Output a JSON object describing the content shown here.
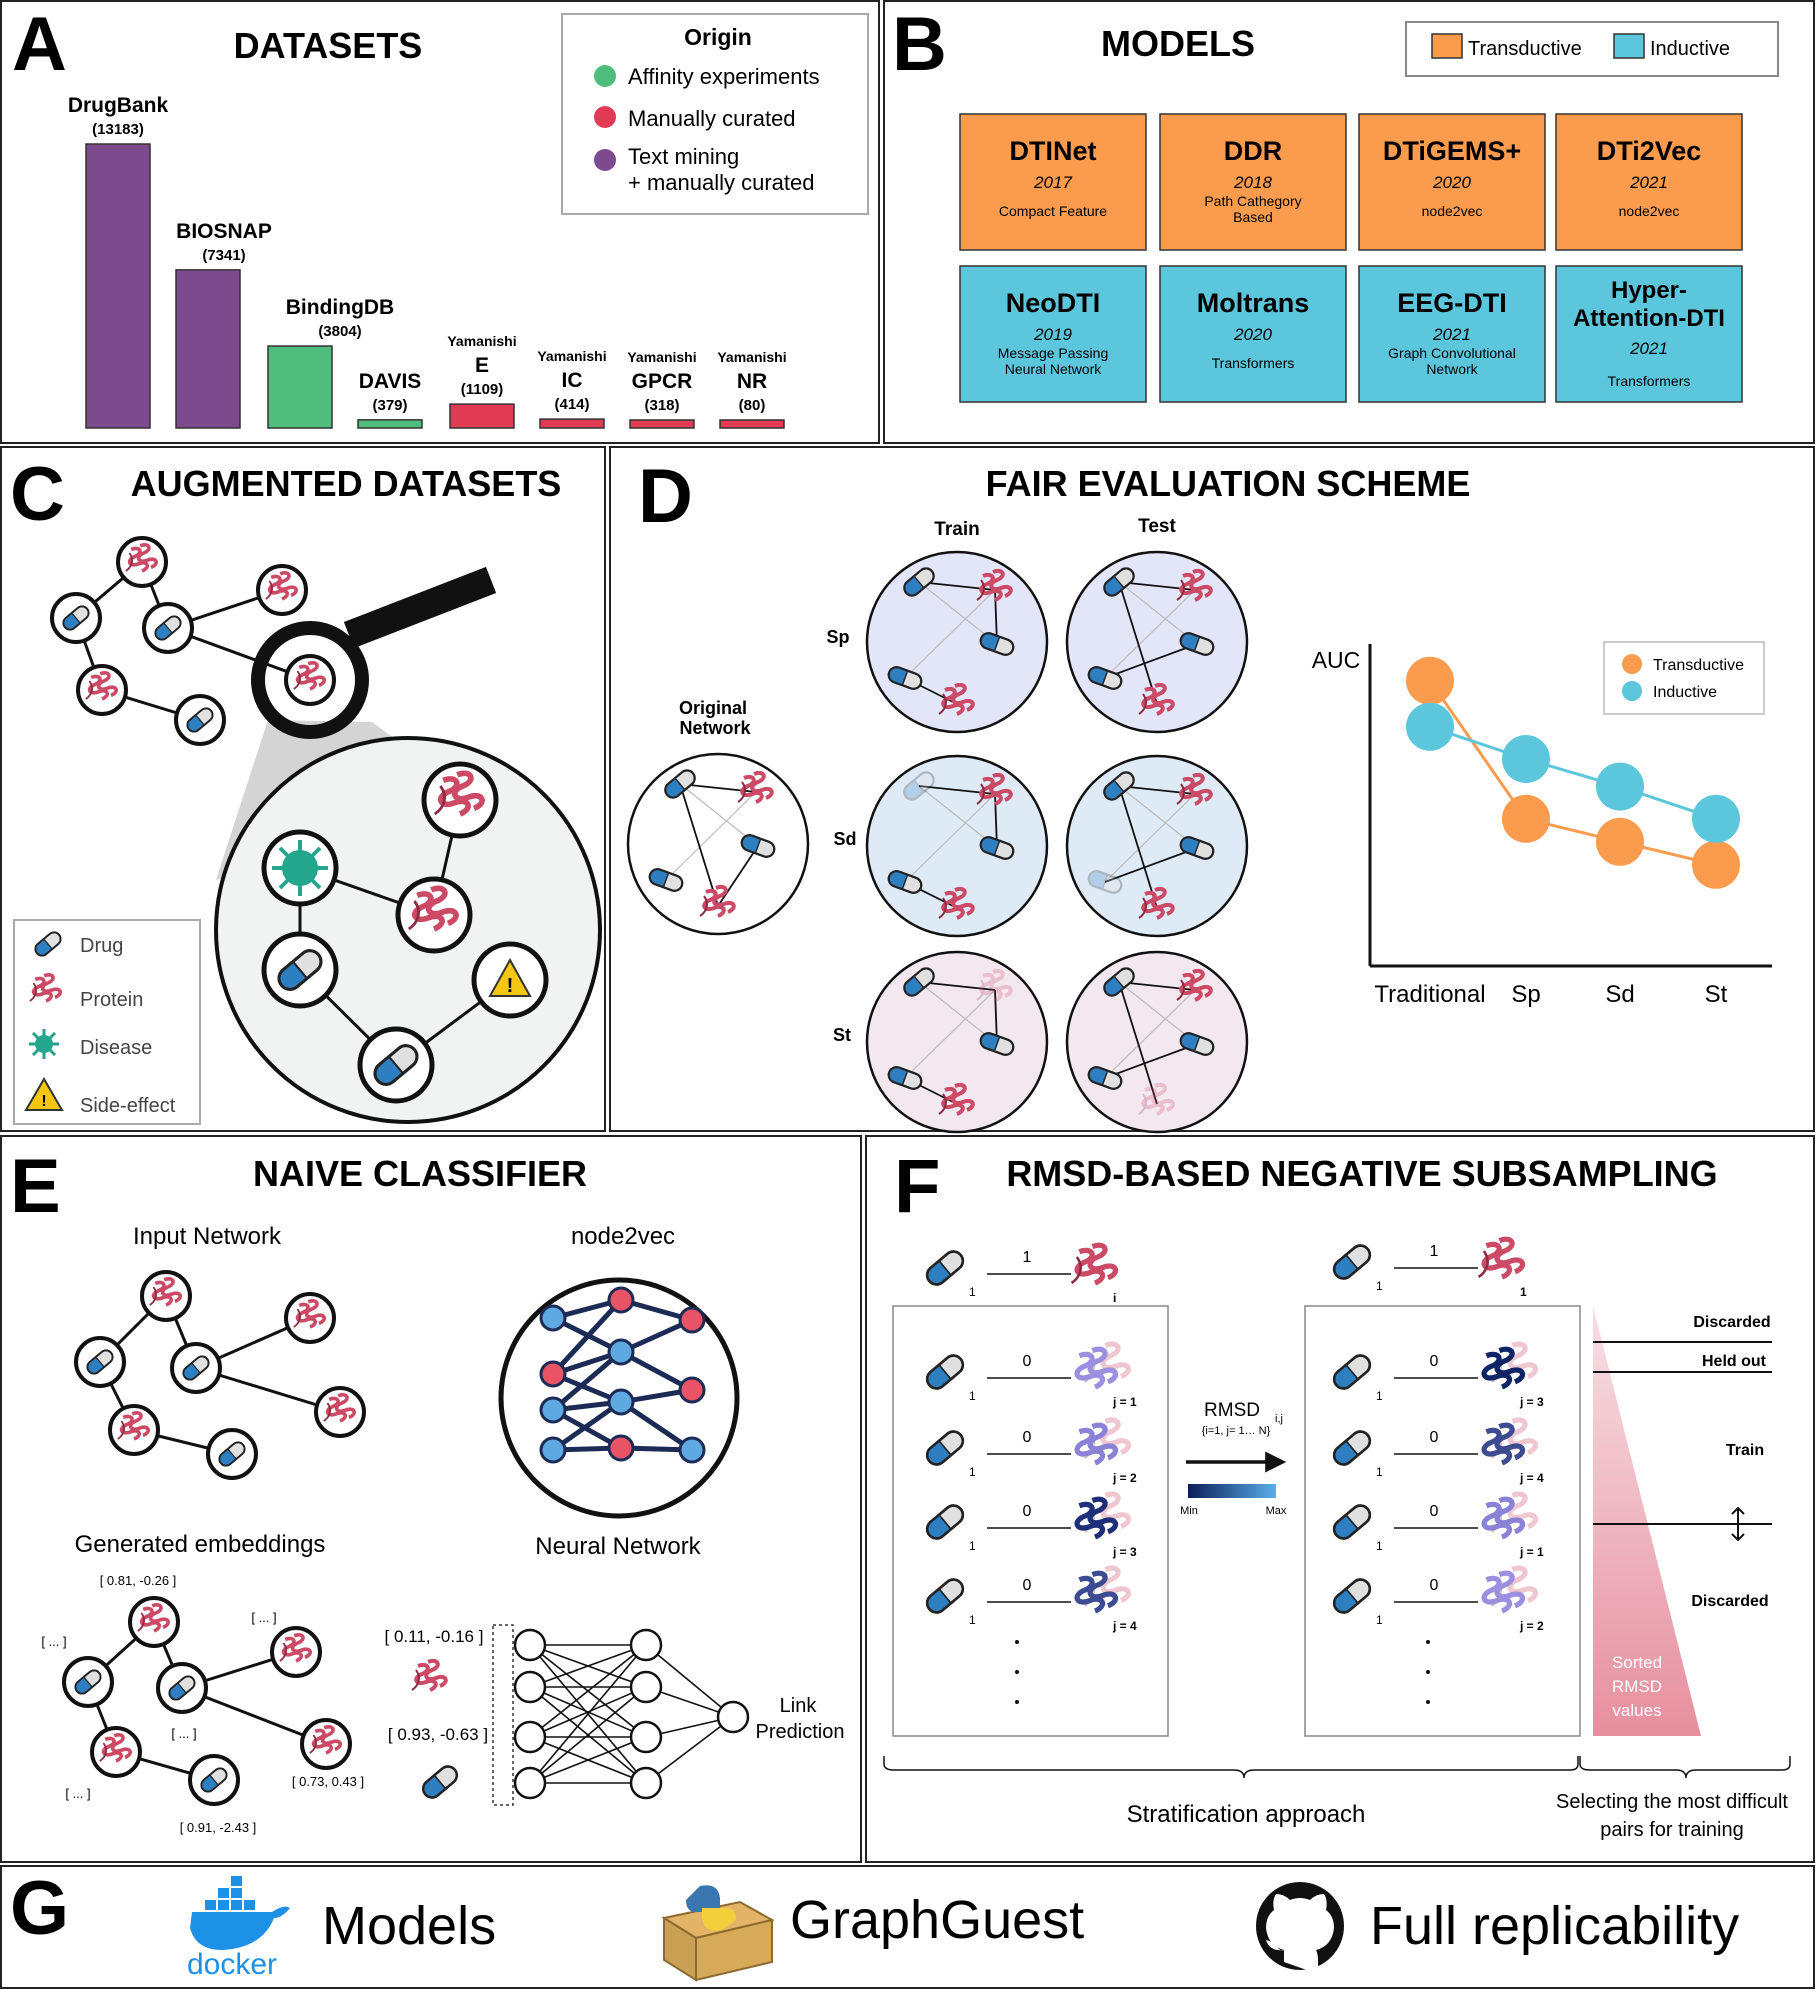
{
  "panels": {
    "a": {
      "letter": "A",
      "title": "DATASETS"
    },
    "b": {
      "letter": "B",
      "title": "MODELS"
    },
    "c": {
      "letter": "C",
      "title": "AUGMENTED DATASETS"
    },
    "d": {
      "letter": "D",
      "title": "FAIR EVALUATION SCHEME"
    },
    "e": {
      "letter": "E",
      "title": "NAIVE CLASSIFIER"
    },
    "f": {
      "letter": "F",
      "title": "RMSD-BASED NEGATIVE SUBSAMPLING"
    },
    "g": {
      "letter": "G"
    }
  },
  "colors": {
    "text_mining": "#7d4a8e",
    "affinity": "#4fbd7b",
    "curated": "#e23b55",
    "transductive": "#fb9b4d",
    "inductive": "#5cc6dc",
    "drug_blue": "#2e7fc1",
    "protein": "#cc4a66",
    "disease": "#23a68b",
    "side_effect": "#f5c612"
  },
  "datasets": {
    "legend_title": "Origin",
    "legend": [
      {
        "label": "Affinity experiments",
        "color_key": "affinity"
      },
      {
        "label": "Manually curated",
        "color_key": "curated"
      },
      {
        "label": "Text mining",
        "label2": "+ manually curated",
        "color_key": "text_mining"
      }
    ],
    "bars": [
      {
        "prefix": "",
        "name": "DrugBank",
        "count": "(13183)",
        "value": 13183,
        "color_key": "text_mining"
      },
      {
        "prefix": "",
        "name": "BIOSNAP",
        "count": "(7341)",
        "value": 7341,
        "color_key": "text_mining"
      },
      {
        "prefix": "",
        "name": "BindingDB",
        "count": "(3804)",
        "value": 3804,
        "color_key": "affinity"
      },
      {
        "prefix": "",
        "name": "DAVIS",
        "count": "(379)",
        "value": 379,
        "color_key": "affinity"
      },
      {
        "prefix": "Yamanishi",
        "name": "E",
        "count": "(1109)",
        "value": 1109,
        "color_key": "curated"
      },
      {
        "prefix": "Yamanishi",
        "name": "IC",
        "count": "(414)",
        "value": 414,
        "color_key": "curated"
      },
      {
        "prefix": "Yamanishi",
        "name": "GPCR",
        "count": "(318)",
        "value": 318,
        "color_key": "curated"
      },
      {
        "prefix": "Yamanishi",
        "name": "NR",
        "count": "(80)",
        "value": 80,
        "color_key": "curated"
      }
    ]
  },
  "models": {
    "legend": {
      "transductive": "Transductive",
      "inductive": "Inductive"
    },
    "transductive": [
      {
        "name": "DTINet",
        "year": "2017",
        "desc1": "Compact Feature",
        "desc2": ""
      },
      {
        "name": "DDR",
        "year": "2018",
        "desc1": "Path Cathegory",
        "desc2": "Based"
      },
      {
        "name": "DTiGEMS+",
        "year": "2020",
        "desc1": "node2vec",
        "desc2": ""
      },
      {
        "name": "DTi2Vec",
        "year": "2021",
        "desc1": "node2vec",
        "desc2": ""
      }
    ],
    "inductive": [
      {
        "name": "NeoDTI",
        "name2": "",
        "year": "2019",
        "desc1": "Message Passing",
        "desc2": "Neural Network"
      },
      {
        "name": "Moltrans",
        "name2": "",
        "year": "2020",
        "desc1": "Transformers",
        "desc2": ""
      },
      {
        "name": "EEG-DTI",
        "name2": "",
        "year": "2021",
        "desc1": "Graph Convolutional",
        "desc2": "Network"
      },
      {
        "name": "Hyper-",
        "name2": "Attention-DTI",
        "year": "2021",
        "desc1": "Transformers",
        "desc2": ""
      }
    ]
  },
  "augmented": {
    "legend": [
      {
        "label": "Drug",
        "icon": "drug-icon"
      },
      {
        "label": "Protein",
        "icon": "protein-icon"
      },
      {
        "label": "Disease",
        "icon": "disease-icon"
      },
      {
        "label": "Side-effect",
        "icon": "side-effect-icon"
      }
    ]
  },
  "fair": {
    "col_train": "Train",
    "col_test": "Test",
    "row_labels": [
      "Sp",
      "Sd",
      "St"
    ],
    "original_label_1": "Original",
    "original_label_2": "Network",
    "chart_data": {
      "type": "line",
      "ylabel": "AUC",
      "categories": [
        "Traditional",
        "Sp",
        "Sd",
        "St"
      ],
      "series": [
        {
          "name": "Transductive",
          "values": [
            0.92,
            0.62,
            0.57,
            0.52
          ],
          "color_key": "transductive"
        },
        {
          "name": "Inductive",
          "values": [
            0.82,
            0.75,
            0.69,
            0.62
          ],
          "color_key": "inductive"
        }
      ],
      "ylim": [
        0.3,
        1.0
      ],
      "legend_position": "top-right",
      "grid": false
    }
  },
  "naive": {
    "input_network": "Input Network",
    "node2vec": "node2vec",
    "generated_embeddings": "Generated embeddings",
    "neural_network": "Neural  Network",
    "emb_a": "[ 0.81, -0.26 ]",
    "emb_b": "[ ... ]",
    "emb_c": "[ ... ]",
    "emb_d": "[ ... ]",
    "emb_e": "[ ... ]",
    "emb_f": "[ 0.73, 0.43 ]",
    "emb_g": "[ 0.91, -2.43 ]",
    "vec_protein": "[ 0.11, -0.16 ]",
    "vec_drug": "[ 0.93, -0.63 ]",
    "link_1": "Link",
    "link_2": "Prediction"
  },
  "rmsd": {
    "one": "1",
    "zero": "0",
    "sub_one": "1",
    "i_label": "i",
    "left_j": [
      "j = 1",
      "j = 2",
      "j = 3",
      "j = 4"
    ],
    "right_j": [
      "j = 3",
      "j = 4",
      "j = 1",
      "j = 2"
    ],
    "rmsd_label": "RMSD",
    "rmsd_sub": "i,j",
    "rmsd_range": "{i=1, j= 1… N}",
    "min": "Min",
    "max": "Max",
    "discarded_top": "Discarded",
    "held_out": "Held out",
    "train": "Train",
    "discarded_bottom": "Discarded",
    "sorted_1": "Sorted",
    "sorted_2": "RMSD",
    "sorted_3": "values",
    "strat": "Stratification approach",
    "selecting_1": "Selecting the most difficult",
    "selecting_2": "pairs for training"
  },
  "resources": {
    "docker_word": "docker",
    "models": "Models",
    "graphguest": "GraphGuest",
    "replicability": "Full replicability"
  }
}
